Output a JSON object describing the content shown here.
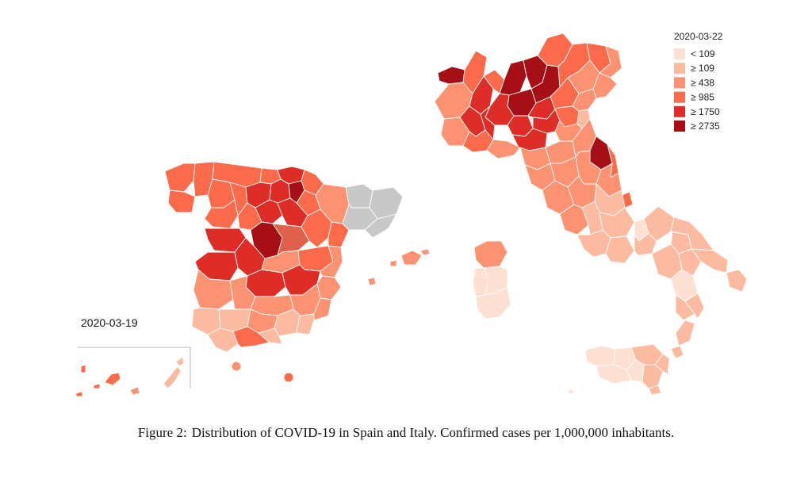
{
  "italy": {
    "date": "2020-03-22",
    "legend": [
      {
        "label": "< 109",
        "color": "#fde0d2"
      },
      {
        "label": "≥ 109",
        "color": "#fcbba1"
      },
      {
        "label": "≥ 438",
        "color": "#fc9272"
      },
      {
        "label": "≥ 985",
        "color": "#fb6a4a"
      },
      {
        "label": "≥ 1750",
        "color": "#de2d26"
      },
      {
        "label": "≥ 2735",
        "color": "#a50f15"
      }
    ]
  },
  "spain": {
    "date": "2020-03-19"
  },
  "caption": {
    "label": "Figure 2:",
    "text": "Distribution of COVID-19 in Spain and Italy. Confirmed cases per 1,000,000 inhabitants."
  }
}
